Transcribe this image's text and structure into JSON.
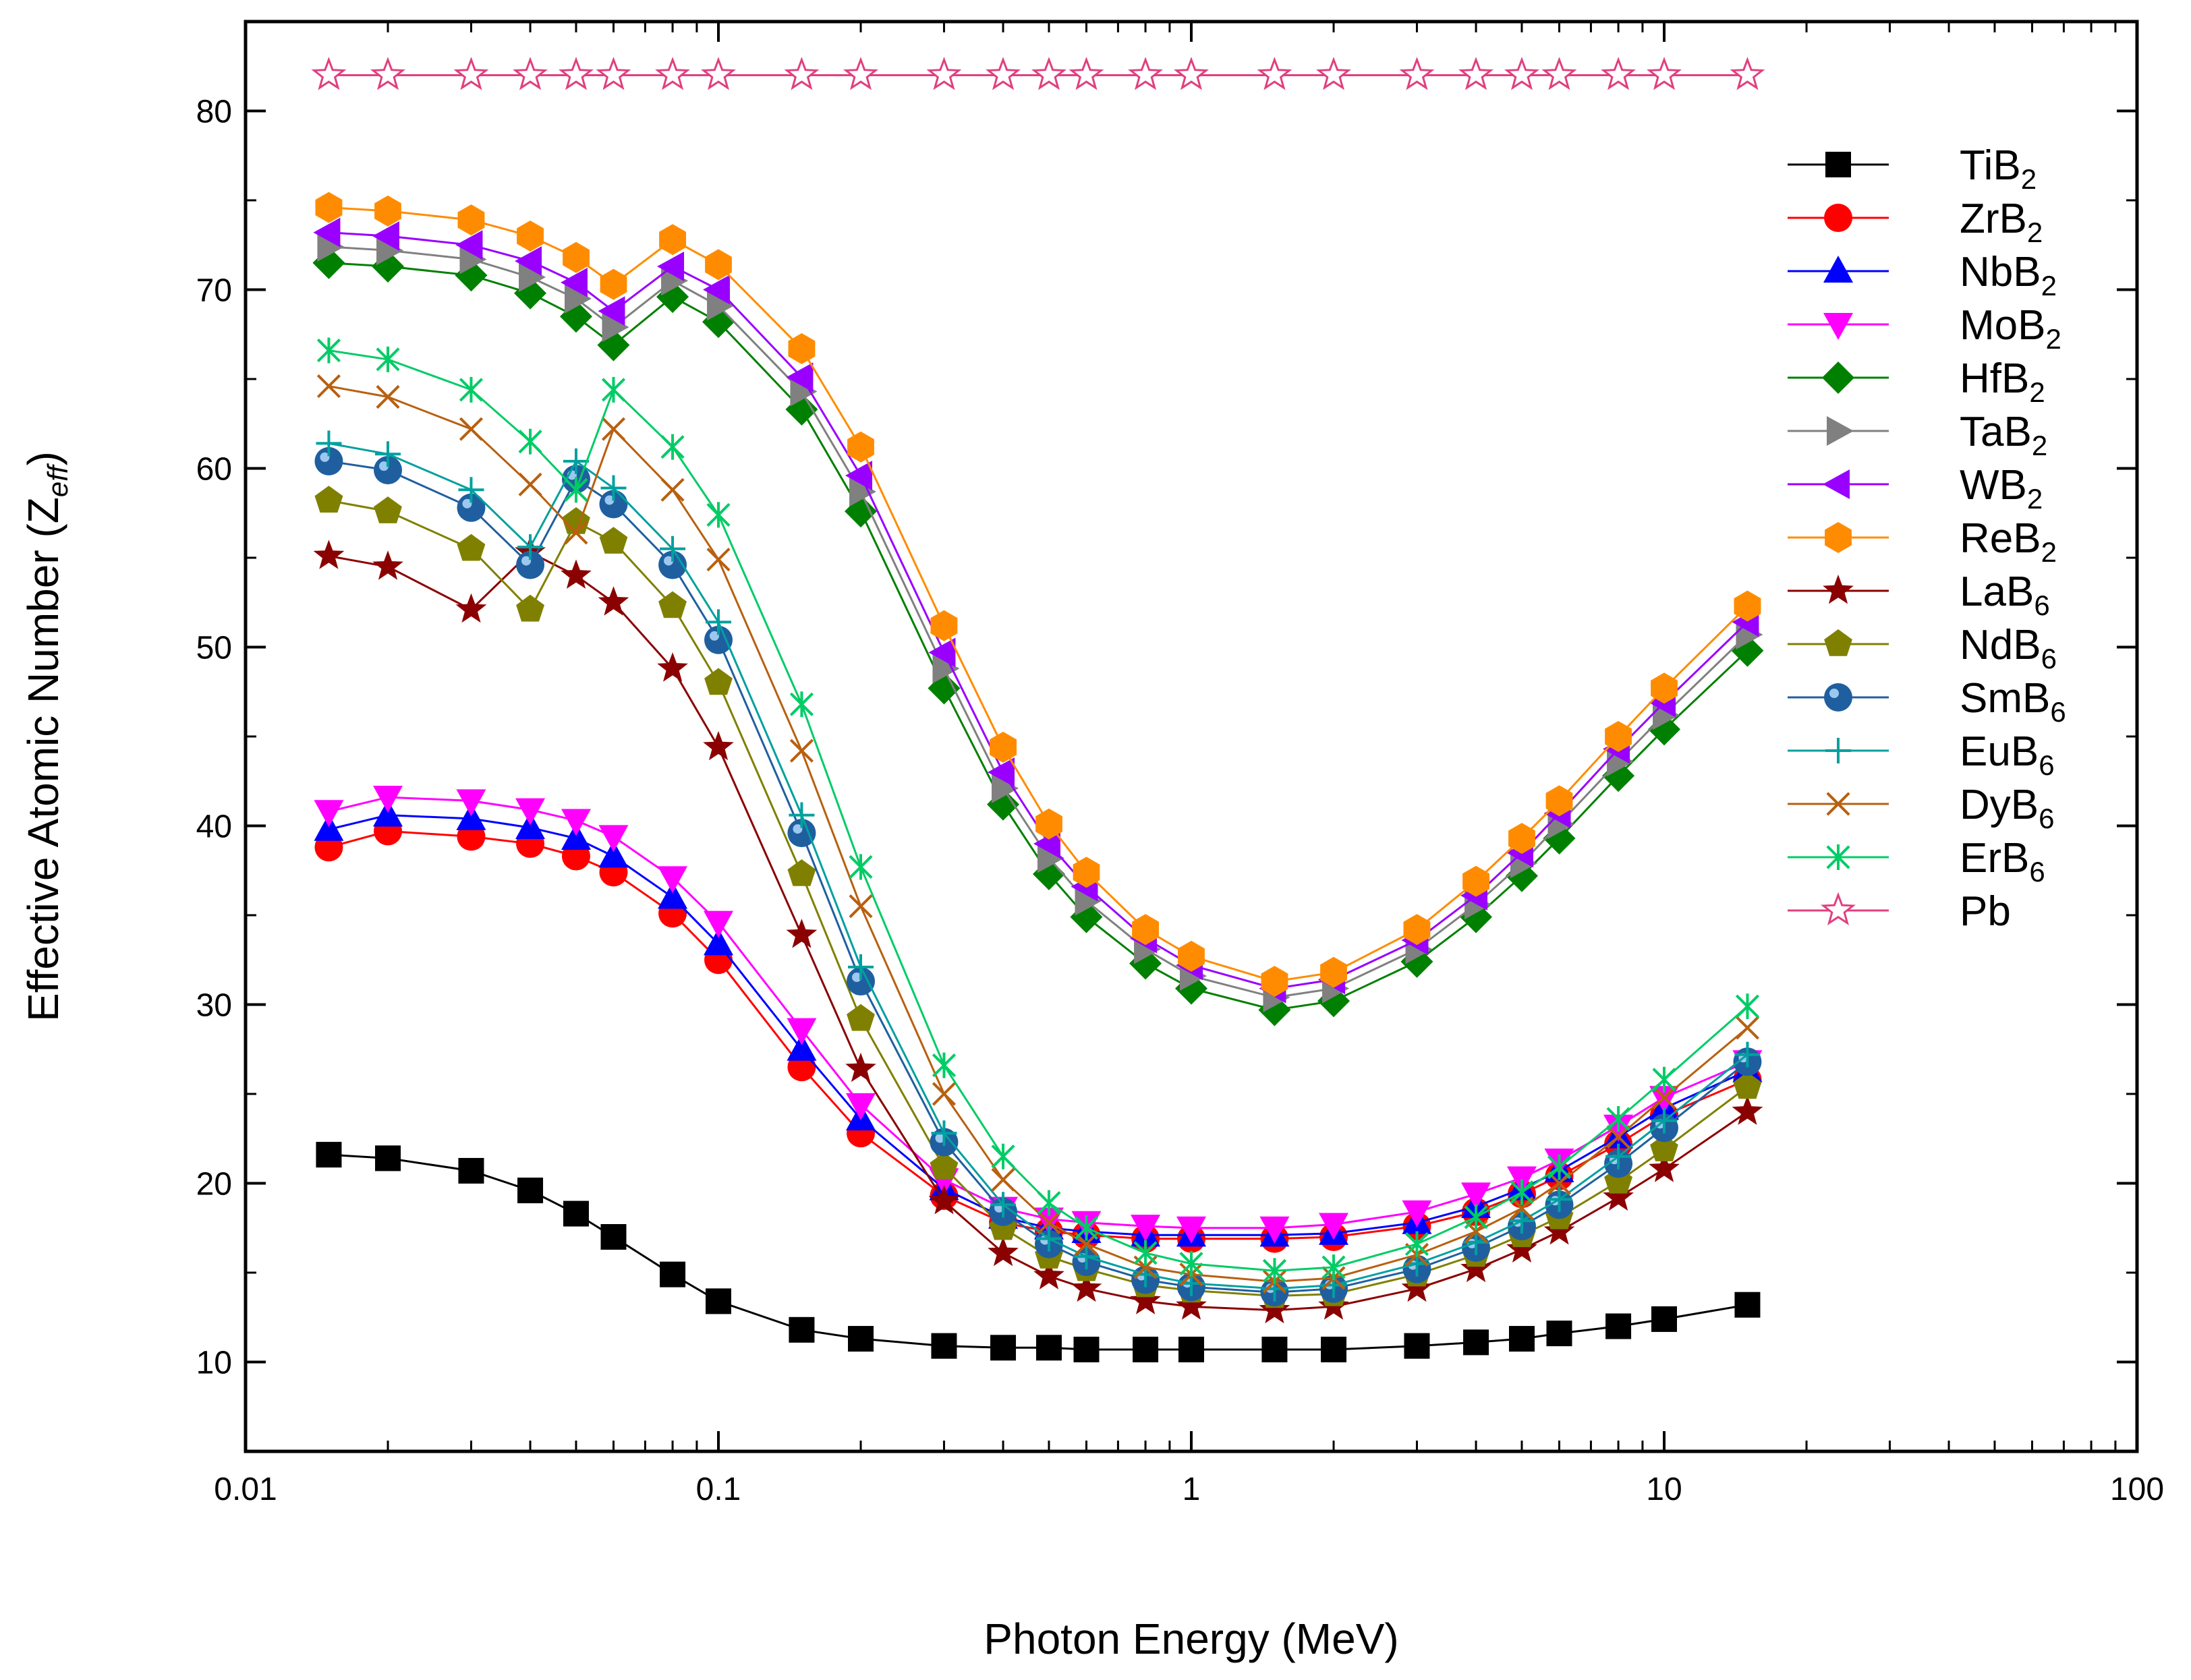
{
  "chart_data": {
    "type": "line",
    "title": "",
    "xlabel": "Photon Energy (MeV)",
    "ylabel": "Effective Atomic Number (Z",
    "ylabel_sub": "eff",
    "ylabel_end": ")",
    "xscale": "log",
    "xlim": [
      0.01,
      100
    ],
    "ylim": [
      5,
      85
    ],
    "grid": false,
    "legend_position": "right",
    "x_ticks": [
      {
        "value": 0.01,
        "label": "0.01"
      },
      {
        "value": 0.1,
        "label": "0.1"
      },
      {
        "value": 1,
        "label": "1"
      },
      {
        "value": 10,
        "label": "10"
      },
      {
        "value": 100,
        "label": "100"
      }
    ],
    "y_ticks": [
      {
        "value": 10,
        "label": "10"
      },
      {
        "value": 20,
        "label": "20"
      },
      {
        "value": 30,
        "label": "30"
      },
      {
        "value": 40,
        "label": "40"
      },
      {
        "value": 50,
        "label": "50"
      },
      {
        "value": 60,
        "label": "60"
      },
      {
        "value": 70,
        "label": "70"
      },
      {
        "value": 80,
        "label": "80"
      }
    ],
    "x": [
      0.015,
      0.02,
      0.03,
      0.04,
      0.05,
      0.06,
      0.08,
      0.1,
      0.15,
      0.2,
      0.3,
      0.4,
      0.5,
      0.6,
      0.8,
      1,
      1.5,
      2,
      3,
      4,
      5,
      6,
      8,
      10,
      15
    ],
    "series": [
      {
        "name": "TiB",
        "sub": "2",
        "color": "#000000",
        "marker": "square",
        "values": [
          21.6,
          21.4,
          20.7,
          19.6,
          18.3,
          17.0,
          14.9,
          13.4,
          11.8,
          11.3,
          10.9,
          10.8,
          10.8,
          10.7,
          10.7,
          10.7,
          10.7,
          10.7,
          10.9,
          11.1,
          11.3,
          11.6,
          12.0,
          12.4,
          13.2
        ]
      },
      {
        "name": "ZrB",
        "sub": "2",
        "color": "#ff0000",
        "marker": "circle",
        "values": [
          38.8,
          39.7,
          39.4,
          39.0,
          38.3,
          37.4,
          35.1,
          32.5,
          26.5,
          22.8,
          19.3,
          17.8,
          17.3,
          17.1,
          16.9,
          16.9,
          16.9,
          17.0,
          17.6,
          18.4,
          19.4,
          20.4,
          22.2,
          23.8,
          25.8
        ]
      },
      {
        "name": "NbB",
        "sub": "2",
        "color": "#0000ff",
        "marker": "triangle-up",
        "values": [
          39.8,
          40.6,
          40.4,
          39.9,
          39.3,
          38.3,
          36.0,
          33.4,
          27.5,
          23.6,
          19.7,
          18.1,
          17.5,
          17.3,
          17.1,
          17.1,
          17.1,
          17.2,
          17.8,
          18.7,
          19.7,
          20.7,
          22.6,
          24.2,
          26.3
        ]
      },
      {
        "name": "MoB",
        "sub": "2",
        "color": "#ff00ff",
        "marker": "triangle-down",
        "values": [
          40.8,
          41.6,
          41.4,
          40.9,
          40.3,
          39.4,
          37.1,
          34.6,
          28.6,
          24.4,
          20.2,
          18.6,
          18.0,
          17.8,
          17.6,
          17.5,
          17.5,
          17.7,
          18.4,
          19.4,
          20.3,
          21.3,
          23.2,
          24.8,
          26.8
        ]
      },
      {
        "name": "HfB",
        "sub": "2",
        "color": "#008000",
        "marker": "diamond",
        "values": [
          71.5,
          71.3,
          70.8,
          69.8,
          68.5,
          66.9,
          69.6,
          68.2,
          63.3,
          57.6,
          47.7,
          41.2,
          37.3,
          34.9,
          32.3,
          30.9,
          29.7,
          30.2,
          32.4,
          34.9,
          37.2,
          39.3,
          42.8,
          45.4,
          49.8
        ]
      },
      {
        "name": "TaB",
        "sub": "2",
        "color": "#808080",
        "marker": "triangle-right",
        "values": [
          72.4,
          72.2,
          71.7,
          70.7,
          69.5,
          67.9,
          70.5,
          69.1,
          64.3,
          58.7,
          48.8,
          42.1,
          38.2,
          35.8,
          33.1,
          31.6,
          30.4,
          30.9,
          33.1,
          35.6,
          37.9,
          40.1,
          43.6,
          46.2,
          50.7
        ]
      },
      {
        "name": "WB",
        "sub": "2",
        "color": "#9900ff",
        "marker": "triangle-left",
        "values": [
          73.2,
          73.0,
          72.5,
          71.6,
          70.4,
          68.8,
          71.3,
          70.0,
          65.1,
          59.6,
          49.7,
          43.0,
          39.0,
          36.6,
          33.7,
          32.2,
          30.9,
          31.4,
          33.6,
          36.1,
          38.5,
          40.7,
          44.3,
          46.9,
          51.4
        ]
      },
      {
        "name": "ReB",
        "sub": "2",
        "color": "#ff8c00",
        "marker": "hexagon",
        "values": [
          74.6,
          74.4,
          73.9,
          73.0,
          71.8,
          70.3,
          72.8,
          71.4,
          66.7,
          61.2,
          51.2,
          44.4,
          40.1,
          37.4,
          34.2,
          32.7,
          31.3,
          31.8,
          34.2,
          36.9,
          39.3,
          41.4,
          45.0,
          47.7,
          52.3
        ]
      },
      {
        "name": "LaB",
        "sub": "6",
        "color": "#8b0000",
        "marker": "star",
        "values": [
          55.1,
          54.5,
          52.1,
          55.3,
          54.0,
          52.5,
          48.8,
          44.4,
          33.9,
          26.4,
          19.0,
          16.1,
          14.8,
          14.1,
          13.4,
          13.1,
          12.9,
          13.1,
          14.1,
          15.2,
          16.3,
          17.3,
          19.2,
          20.8,
          24.0
        ]
      },
      {
        "name": "NdB",
        "sub": "6",
        "color": "#808000",
        "marker": "pentagon",
        "values": [
          58.2,
          57.6,
          55.5,
          52.1,
          57.0,
          55.9,
          52.3,
          48.0,
          37.3,
          29.2,
          20.9,
          17.5,
          15.9,
          15.2,
          14.3,
          14.0,
          13.7,
          13.8,
          14.9,
          16.0,
          17.1,
          18.1,
          20.1,
          21.9,
          25.4
        ]
      },
      {
        "name": "SmB",
        "sub": "6",
        "color": "#1f5f9f",
        "marker": "sphere",
        "values": [
          60.4,
          59.9,
          57.8,
          54.6,
          59.4,
          58.0,
          54.6,
          50.4,
          39.6,
          31.3,
          22.3,
          18.4,
          16.6,
          15.6,
          14.6,
          14.2,
          13.9,
          14.1,
          15.2,
          16.4,
          17.6,
          18.8,
          21.1,
          23.1,
          26.8
        ]
      },
      {
        "name": "EuB",
        "sub": "6",
        "color": "#00a0a0",
        "marker": "plus",
        "values": [
          61.4,
          60.8,
          58.8,
          55.6,
          60.4,
          58.9,
          55.5,
          51.4,
          40.6,
          32.1,
          22.8,
          18.8,
          16.9,
          15.9,
          14.9,
          14.4,
          14.1,
          14.3,
          15.5,
          16.7,
          17.9,
          19.1,
          21.5,
          23.5,
          27.2
        ]
      },
      {
        "name": "DyB",
        "sub": "6",
        "color": "#b8600f",
        "marker": "x",
        "values": [
          64.6,
          64.0,
          62.2,
          59.1,
          56.4,
          62.2,
          58.8,
          54.9,
          44.2,
          35.5,
          25.0,
          20.2,
          17.8,
          16.6,
          15.3,
          14.9,
          14.5,
          14.7,
          16.0,
          17.3,
          18.6,
          20.0,
          22.6,
          24.8,
          28.7
        ]
      },
      {
        "name": "ErB",
        "sub": "6",
        "color": "#00cc66",
        "marker": "asterisk",
        "values": [
          66.6,
          66.1,
          64.4,
          61.5,
          58.8,
          64.4,
          61.2,
          57.4,
          46.8,
          37.7,
          26.6,
          21.5,
          18.9,
          17.5,
          16.1,
          15.5,
          15.1,
          15.3,
          16.6,
          18.1,
          19.5,
          20.9,
          23.6,
          25.8,
          29.9
        ]
      },
      {
        "name": "Pb",
        "sub": "",
        "color": "#e0407f",
        "marker": "open-star",
        "values": [
          82,
          82,
          82,
          82,
          82,
          82,
          82,
          82,
          82,
          82,
          82,
          82,
          82,
          82,
          82,
          82,
          82,
          82,
          82,
          82,
          82,
          82,
          82,
          82,
          82
        ]
      }
    ]
  }
}
